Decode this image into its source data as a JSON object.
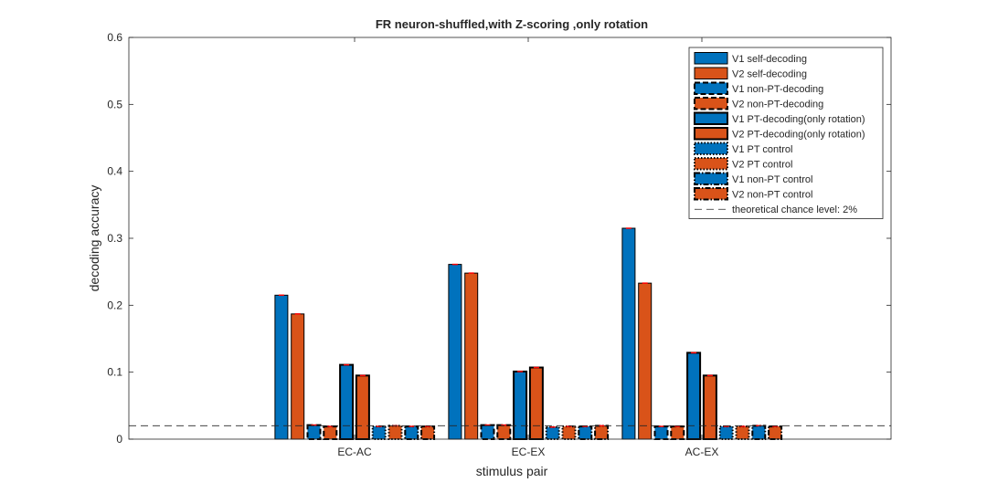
{
  "chart_data": {
    "type": "bar",
    "title": "FR neuron-shuffled,with Z-scoring ,only rotation",
    "xlabel": "stimulus pair",
    "ylabel": "decoding accuracy",
    "ylim": [
      0,
      0.6
    ],
    "yticks": [
      0,
      0.1,
      0.2,
      0.3,
      0.4,
      0.5,
      0.6
    ],
    "ytick_labels": [
      "0",
      "0.1",
      "0.2",
      "0.3",
      "0.4",
      "0.5",
      "0.6"
    ],
    "categories": [
      "EC-AC",
      "EC-EX",
      "AC-EX"
    ],
    "grid": false,
    "legend_position": "top-right",
    "chance_level": {
      "label": "theoretical chance level: 2%",
      "value": 0.02
    },
    "series": [
      {
        "name": "V1 self-decoding",
        "color": "#0072BD",
        "edge": "solid",
        "values": [
          0.215,
          0.261,
          0.315
        ]
      },
      {
        "name": "V2 self-decoding",
        "color": "#D95319",
        "edge": "solid",
        "values": [
          0.187,
          0.248,
          0.233
        ]
      },
      {
        "name": "V1 non-PT-decoding",
        "color": "#0072BD",
        "edge": "dashed",
        "values": [
          0.021,
          0.021,
          0.019
        ]
      },
      {
        "name": "V2 non-PT-decoding",
        "color": "#D95319",
        "edge": "dashed",
        "values": [
          0.019,
          0.021,
          0.019
        ]
      },
      {
        "name": "V1 PT-decoding(only rotation)",
        "color": "#0072BD",
        "edge": "solid-thick",
        "values": [
          0.111,
          0.101,
          0.129
        ]
      },
      {
        "name": "V2 PT-decoding(only rotation)",
        "color": "#D95319",
        "edge": "solid-thick",
        "values": [
          0.095,
          0.107,
          0.095
        ]
      },
      {
        "name": "V1 PT control",
        "color": "#0072BD",
        "edge": "dotted",
        "values": [
          0.019,
          0.018,
          0.019
        ]
      },
      {
        "name": "V2 PT control",
        "color": "#D95319",
        "edge": "dotted",
        "values": [
          0.02,
          0.019,
          0.019
        ]
      },
      {
        "name": "V1 non-PT control",
        "color": "#0072BD",
        "edge": "dashdot",
        "values": [
          0.019,
          0.019,
          0.02
        ]
      },
      {
        "name": "V2 non-PT control",
        "color": "#D95319",
        "edge": "dashdot",
        "values": [
          0.019,
          0.02,
          0.019
        ]
      }
    ]
  }
}
